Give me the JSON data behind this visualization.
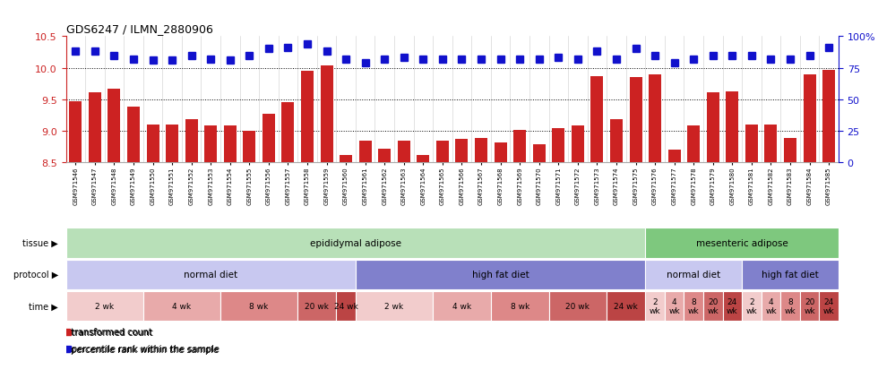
{
  "title": "GDS6247 / ILMN_2880906",
  "samples": [
    "GSM971546",
    "GSM971547",
    "GSM971548",
    "GSM971549",
    "GSM971550",
    "GSM971551",
    "GSM971552",
    "GSM971553",
    "GSM971554",
    "GSM971555",
    "GSM971556",
    "GSM971557",
    "GSM971558",
    "GSM971559",
    "GSM971560",
    "GSM971561",
    "GSM971562",
    "GSM971563",
    "GSM971564",
    "GSM971565",
    "GSM971566",
    "GSM971567",
    "GSM971568",
    "GSM971569",
    "GSM971570",
    "GSM971571",
    "GSM971572",
    "GSM971573",
    "GSM971574",
    "GSM971575",
    "GSM971576",
    "GSM971577",
    "GSM971578",
    "GSM971579",
    "GSM971580",
    "GSM971581",
    "GSM971582",
    "GSM971583",
    "GSM971584",
    "GSM971585"
  ],
  "bar_values": [
    9.47,
    9.61,
    9.67,
    9.38,
    9.1,
    9.1,
    9.19,
    9.08,
    9.09,
    9.0,
    9.27,
    9.45,
    9.95,
    10.03,
    8.62,
    8.85,
    8.72,
    8.85,
    8.62,
    8.85,
    8.87,
    8.88,
    8.82,
    9.02,
    8.79,
    9.04,
    9.09,
    9.87,
    9.19,
    9.85,
    9.9,
    8.7,
    9.08,
    9.61,
    9.63,
    9.1,
    9.1,
    8.88,
    9.9,
    9.97
  ],
  "percentile_values_pct": [
    88,
    88,
    85,
    82,
    81,
    81,
    85,
    82,
    81,
    85,
    90,
    91,
    94,
    88,
    82,
    79,
    82,
    83,
    82,
    82,
    82,
    82,
    82,
    82,
    82,
    83,
    82,
    88,
    82,
    90,
    85,
    79,
    82,
    85,
    85,
    85,
    82,
    82,
    85,
    91
  ],
  "bar_color": "#cc2222",
  "dot_color": "#1111cc",
  "ylim_left": [
    8.5,
    10.5
  ],
  "yticks_left": [
    8.5,
    9.0,
    9.5,
    10.0,
    10.5
  ],
  "ylim_right": [
    0,
    100
  ],
  "yticks_right": [
    0,
    25,
    50,
    75,
    100
  ],
  "ytick_right_labels": [
    "0",
    "25",
    "50",
    "75",
    "100%"
  ],
  "grid_lines": [
    9.0,
    9.5,
    10.0
  ],
  "tissue_groups": [
    {
      "label": "epididymal adipose",
      "start": 0,
      "end": 30,
      "color": "#b8e0b8"
    },
    {
      "label": "mesenteric adipose",
      "start": 30,
      "end": 40,
      "color": "#7ec87e"
    }
  ],
  "protocol_groups": [
    {
      "label": "normal diet",
      "start": 0,
      "end": 15,
      "color": "#c8c8f0"
    },
    {
      "label": "high fat diet",
      "start": 15,
      "end": 30,
      "color": "#8080cc"
    },
    {
      "label": "normal diet",
      "start": 30,
      "end": 35,
      "color": "#c8c8f0"
    },
    {
      "label": "high fat diet",
      "start": 35,
      "end": 40,
      "color": "#8080cc"
    }
  ],
  "time_groups": [
    {
      "label": "2 wk",
      "start": 0,
      "end": 4,
      "color": "#f2cccc"
    },
    {
      "label": "4 wk",
      "start": 4,
      "end": 8,
      "color": "#e8aaaa"
    },
    {
      "label": "8 wk",
      "start": 8,
      "end": 12,
      "color": "#dd8888"
    },
    {
      "label": "20 wk",
      "start": 12,
      "end": 14,
      "color": "#cc6666"
    },
    {
      "label": "24 wk",
      "start": 14,
      "end": 15,
      "color": "#bb4444"
    },
    {
      "label": "2 wk",
      "start": 15,
      "end": 19,
      "color": "#f2cccc"
    },
    {
      "label": "4 wk",
      "start": 19,
      "end": 22,
      "color": "#e8aaaa"
    },
    {
      "label": "8 wk",
      "start": 22,
      "end": 25,
      "color": "#dd8888"
    },
    {
      "label": "20 wk",
      "start": 25,
      "end": 28,
      "color": "#cc6666"
    },
    {
      "label": "24 wk",
      "start": 28,
      "end": 30,
      "color": "#bb4444"
    },
    {
      "label": "2\nwk",
      "start": 30,
      "end": 31,
      "color": "#f2cccc"
    },
    {
      "label": "4\nwk",
      "start": 31,
      "end": 32,
      "color": "#e8aaaa"
    },
    {
      "label": "8\nwk",
      "start": 32,
      "end": 33,
      "color": "#dd8888"
    },
    {
      "label": "20\nwk",
      "start": 33,
      "end": 34,
      "color": "#cc6666"
    },
    {
      "label": "24\nwk",
      "start": 34,
      "end": 35,
      "color": "#bb4444"
    },
    {
      "label": "2\nwk",
      "start": 35,
      "end": 36,
      "color": "#f2cccc"
    },
    {
      "label": "4\nwk",
      "start": 36,
      "end": 37,
      "color": "#e8aaaa"
    },
    {
      "label": "8\nwk",
      "start": 37,
      "end": 38,
      "color": "#dd8888"
    },
    {
      "label": "20\nwk",
      "start": 38,
      "end": 39,
      "color": "#cc6666"
    },
    {
      "label": "24\nwk",
      "start": 39,
      "end": 40,
      "color": "#bb4444"
    }
  ],
  "row_labels": [
    "tissue",
    "protocol",
    "time"
  ],
  "legend_items": [
    {
      "label": "transformed count",
      "color": "#cc2222"
    },
    {
      "label": "percentile rank within the sample",
      "color": "#1111cc"
    }
  ]
}
